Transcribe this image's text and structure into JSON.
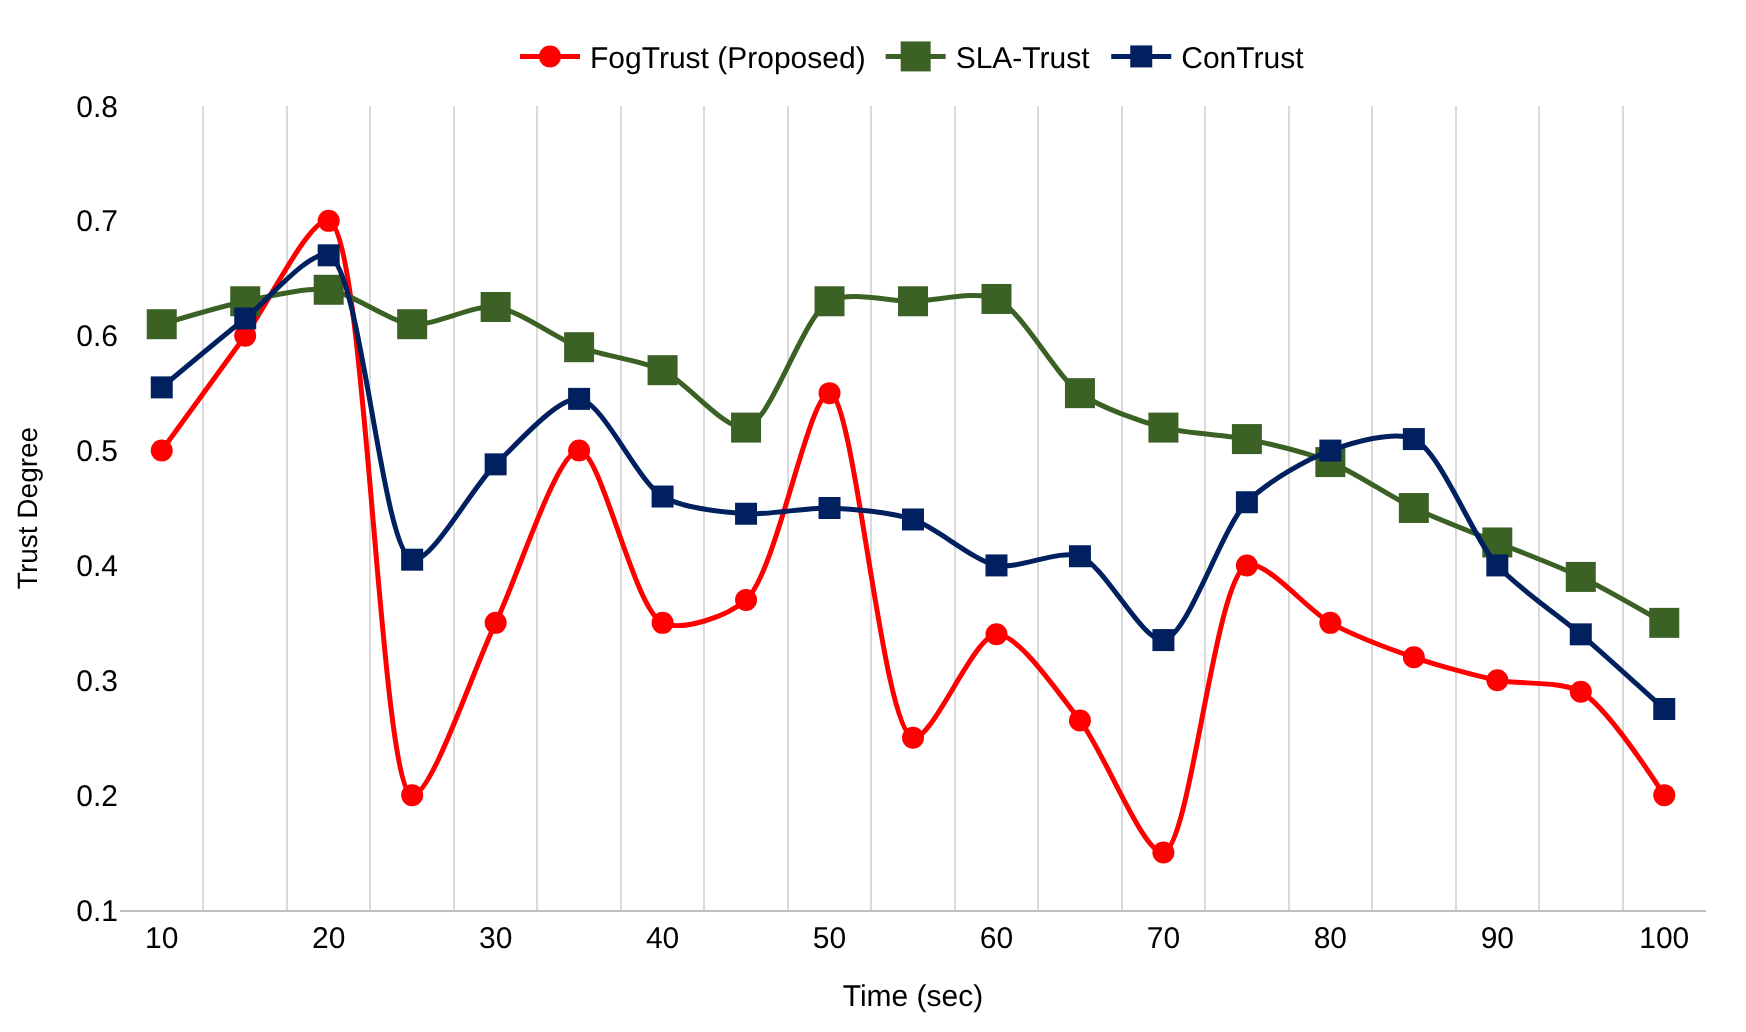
{
  "chart_data": {
    "type": "line",
    "xlabel": "Time (sec)",
    "ylabel": "Trust Degree",
    "x": [
      10,
      15,
      20,
      25,
      30,
      35,
      40,
      45,
      50,
      55,
      60,
      65,
      70,
      75,
      80,
      85,
      90,
      95,
      100
    ],
    "xlim": [
      7.5,
      102.5
    ],
    "xticks": [
      10,
      20,
      30,
      40,
      50,
      60,
      70,
      80,
      90,
      100
    ],
    "ylim": [
      0.1,
      0.8
    ],
    "yticks": [
      0.1,
      0.2,
      0.3,
      0.4,
      0.5,
      0.6,
      0.7,
      0.8
    ],
    "grid": "x",
    "legend": "top",
    "series": [
      {
        "name": "FogTrust (Proposed)",
        "color": "#ff0000",
        "marker": "circle",
        "values": [
          0.5,
          0.6,
          0.7,
          0.2,
          0.35,
          0.5,
          0.35,
          0.37,
          0.55,
          0.25,
          0.34,
          0.265,
          0.15,
          0.4,
          0.35,
          0.32,
          0.3,
          0.29,
          0.2
        ]
      },
      {
        "name": "SLA-Trust",
        "color": "#3b6125",
        "marker": "square",
        "values": [
          0.61,
          0.63,
          0.64,
          0.61,
          0.625,
          0.59,
          0.57,
          0.52,
          0.63,
          0.63,
          0.632,
          0.55,
          0.52,
          0.51,
          0.49,
          0.45,
          0.42,
          0.39,
          0.35
        ]
      },
      {
        "name": "ConTrust",
        "color": "#002060",
        "marker": "square",
        "values": [
          0.555,
          0.615,
          0.67,
          0.405,
          0.488,
          0.545,
          0.46,
          0.445,
          0.45,
          0.44,
          0.4,
          0.408,
          0.335,
          0.455,
          0.5,
          0.51,
          0.4,
          0.34,
          0.275
        ]
      }
    ]
  }
}
